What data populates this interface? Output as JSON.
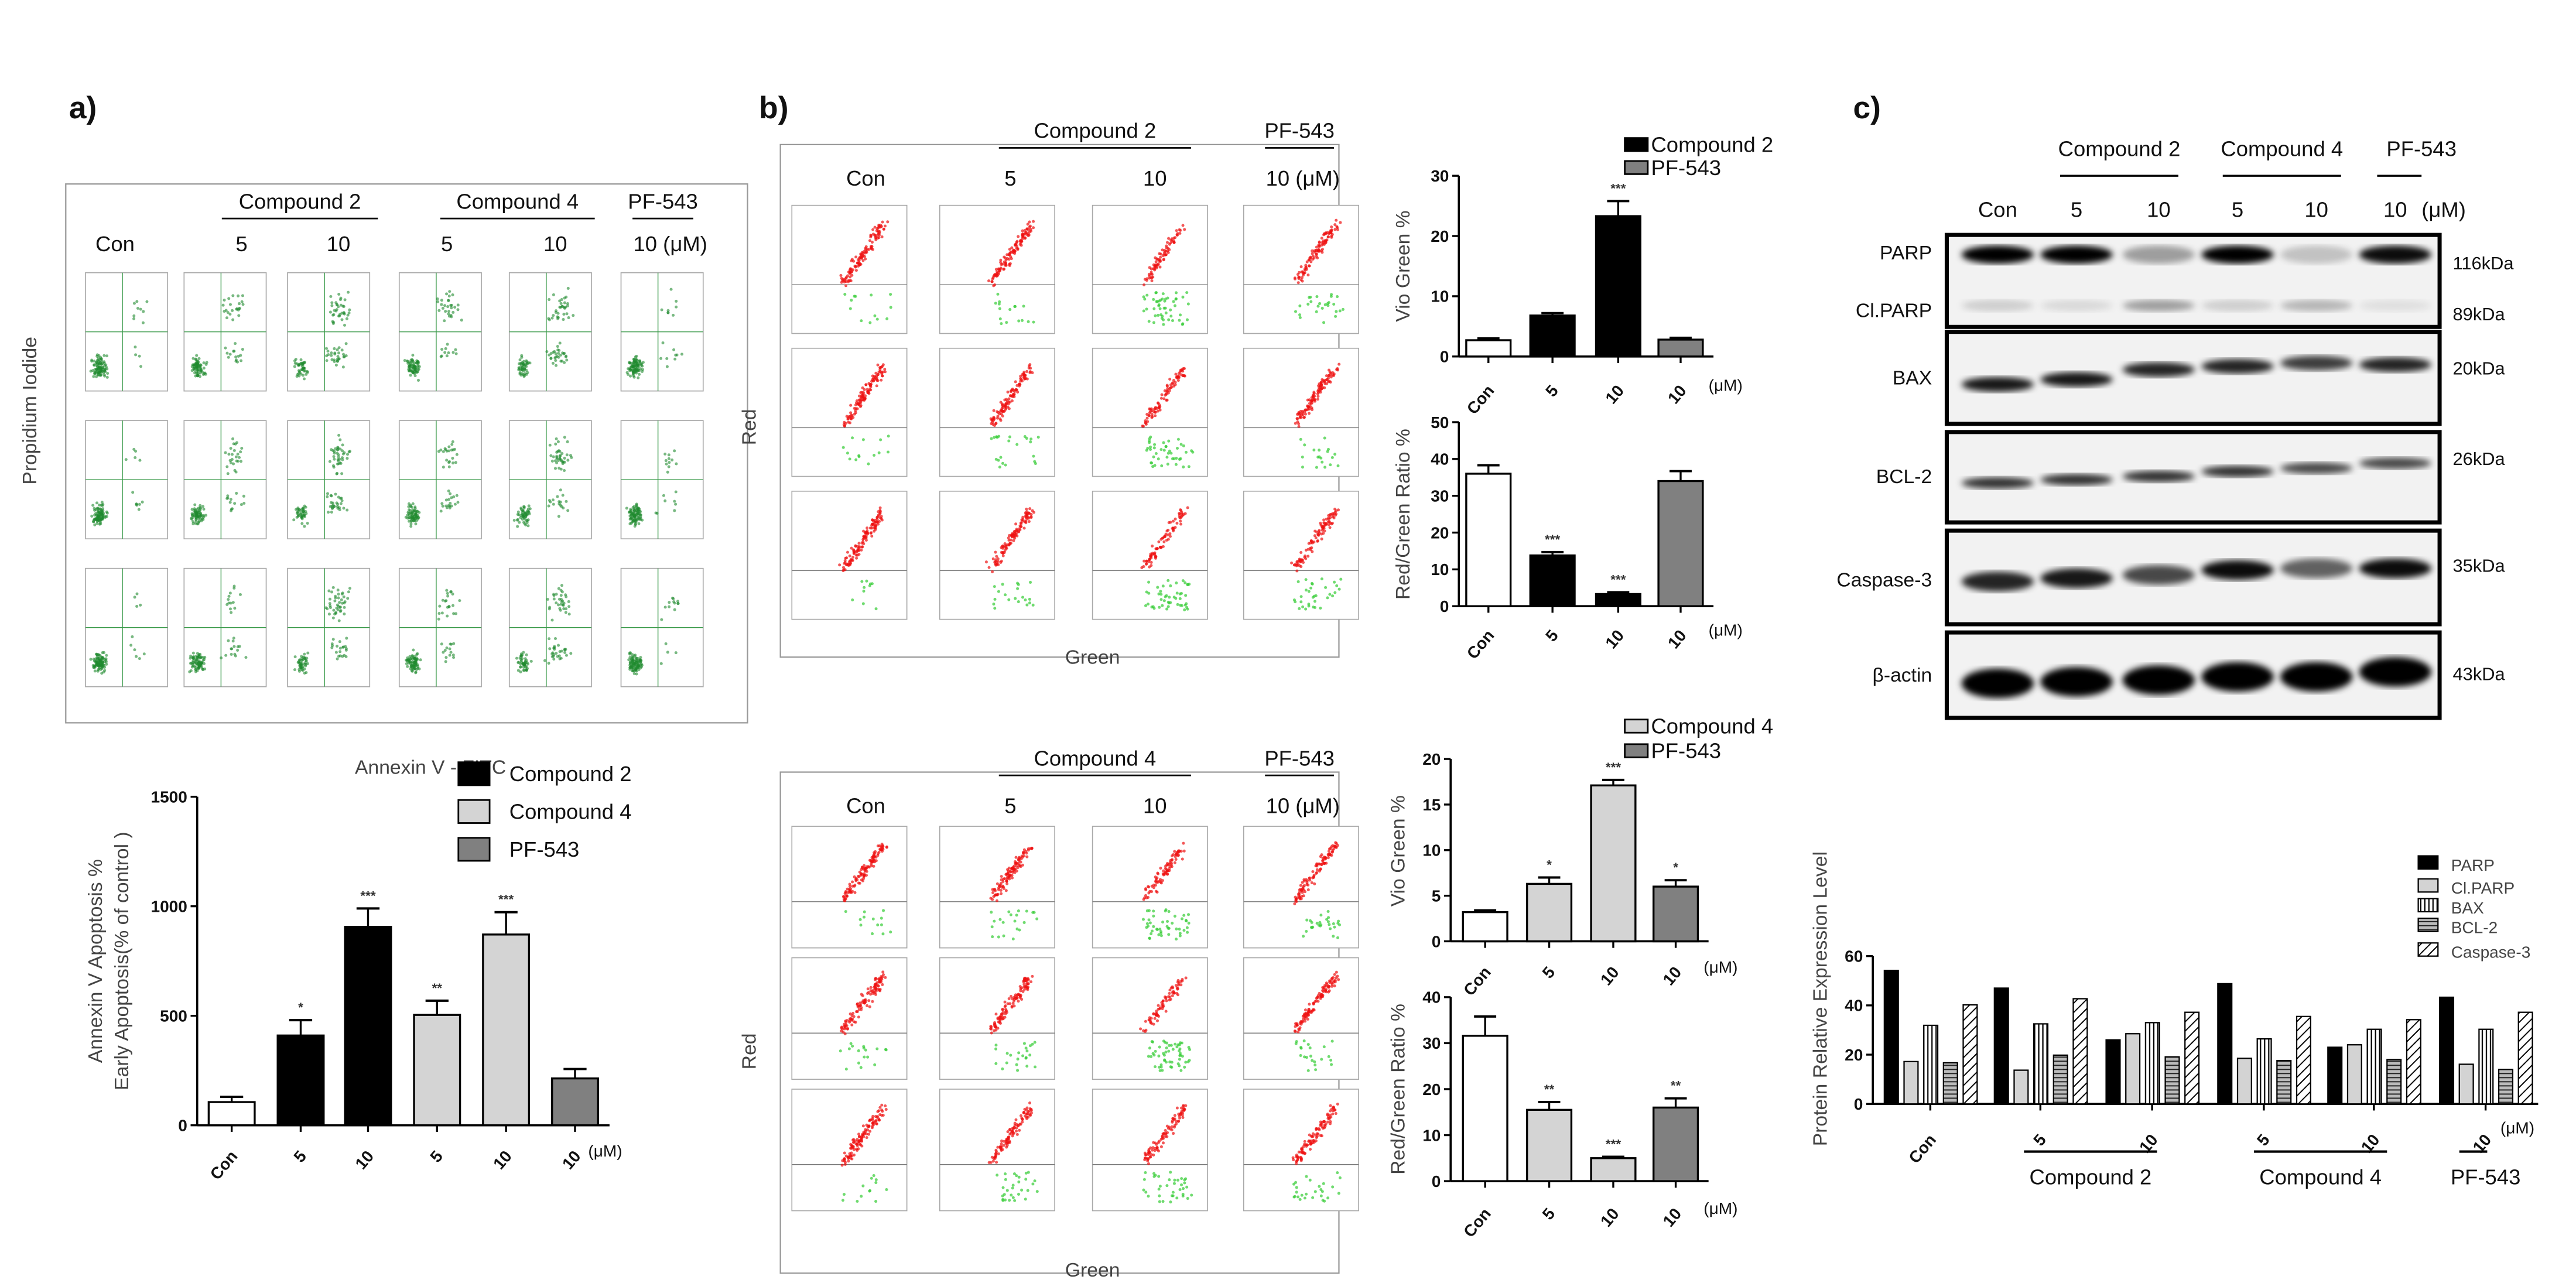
{
  "panels": {
    "a": "a)",
    "b": "b)",
    "c": "c)"
  },
  "flow_a": {
    "groups": [
      "Compound 2",
      "Compound 4",
      "PF-543"
    ],
    "columns": [
      "Con",
      "5",
      "10",
      "5",
      "10",
      "10 (μM)"
    ],
    "ylabel": "Propidium Iodide",
    "xlabel": "Annexin V - FITC"
  },
  "flow_b_top": {
    "groups": [
      "Compound 2",
      "PF-543"
    ],
    "columns": [
      "Con",
      "5",
      "10",
      "10 (μM)"
    ],
    "ylabel": "Red",
    "xlabel": "Green"
  },
  "flow_b_bottom": {
    "groups": [
      "Compound 4",
      "PF-543"
    ],
    "columns": [
      "Con",
      "5",
      "10",
      "10 (μM)"
    ],
    "ylabel": "Red",
    "xlabel": "Green"
  },
  "western_blot": {
    "groups": [
      "Compound 2",
      "Compound 4",
      "PF-543"
    ],
    "lanes": [
      "Con",
      "5",
      "10",
      "5",
      "10",
      "10"
    ],
    "unit": "(μM)",
    "rows": [
      {
        "protein": "PARP",
        "kda": "116kDa",
        "intensity": [
          1.0,
          1.0,
          0.35,
          1.0,
          0.2,
          0.95
        ]
      },
      {
        "protein": "Cl.PARP",
        "kda": "89kDa",
        "intensity": [
          0.15,
          0.1,
          0.35,
          0.15,
          0.25,
          0.08
        ]
      },
      {
        "protein": "BAX",
        "kda": "20kDa",
        "intensity": [
          0.9,
          0.9,
          0.85,
          0.85,
          0.75,
          0.85
        ]
      },
      {
        "protein": "BCL-2",
        "kda": "26kDa",
        "intensity": [
          0.8,
          0.8,
          0.8,
          0.8,
          0.7,
          0.7
        ]
      },
      {
        "protein": "Caspase-3",
        "kda": "35kDa",
        "intensity": [
          0.85,
          0.9,
          0.7,
          0.95,
          0.6,
          0.95
        ]
      },
      {
        "protein": "β-actin",
        "kda": "43kDa",
        "intensity": [
          1,
          1,
          1,
          1,
          1,
          1
        ]
      }
    ]
  },
  "chart_data": [
    {
      "id": "a-apoptosis",
      "type": "bar",
      "categories": [
        "Con",
        "5",
        "10",
        "5",
        "10",
        "10"
      ],
      "unit": "(μM)",
      "values": [
        106,
        410,
        906,
        504,
        871,
        214
      ],
      "errors": [
        130,
        480,
        990,
        569,
        973,
        257
      ],
      "significance": [
        "",
        "*",
        "***",
        "**",
        "***",
        ""
      ],
      "bar_colors": [
        "#ffffff",
        "#000000",
        "#000000",
        "#d4d4d4",
        "#d4d4d4",
        "#808080"
      ],
      "ylabel": [
        "Annexin V Apoptosis %",
        "Early Apoptosis(% of control )"
      ],
      "yticks": [
        0,
        500,
        1000,
        1500
      ],
      "ylim": [
        0,
        1500
      ],
      "legend": [
        {
          "name": "Compound 2",
          "color": "#000000"
        },
        {
          "name": "Compound 4",
          "color": "#d4d4d4"
        },
        {
          "name": "PF-543",
          "color": "#808080"
        }
      ]
    },
    {
      "id": "b-c2-vio-green",
      "type": "bar",
      "categories": [
        "Con",
        "5",
        "10",
        "10"
      ],
      "unit": "(μM)",
      "values": [
        2.7,
        6.8,
        23.3,
        2.8
      ],
      "errors": [
        3.0,
        7.2,
        25.8,
        3.1
      ],
      "significance": [
        "",
        "",
        "***",
        ""
      ],
      "bar_colors": [
        "#ffffff",
        "#000000",
        "#000000",
        "#808080"
      ],
      "ylabel": [
        "Vio Green %"
      ],
      "yticks": [
        0,
        10,
        20,
        30
      ],
      "ylim": [
        0,
        30
      ],
      "legend": [
        {
          "name": "Compound 2",
          "color": "#000000"
        },
        {
          "name": "PF-543",
          "color": "#808080"
        }
      ]
    },
    {
      "id": "b-c2-red-green-ratio",
      "type": "bar",
      "categories": [
        "Con",
        "5",
        "10",
        "10"
      ],
      "unit": "(μM)",
      "values": [
        36.0,
        13.8,
        3.3,
        34.0
      ],
      "errors": [
        38.3,
        14.7,
        3.8,
        36.7
      ],
      "significance": [
        "",
        "***",
        "***",
        ""
      ],
      "bar_colors": [
        "#ffffff",
        "#000000",
        "#000000",
        "#808080"
      ],
      "ylabel": [
        "Red/Green Ratio %"
      ],
      "yticks": [
        0,
        10,
        20,
        30,
        40,
        50
      ],
      "ylim": [
        0,
        50
      ],
      "legend": []
    },
    {
      "id": "b-c4-vio-green",
      "type": "bar",
      "categories": [
        "Con",
        "5",
        "10",
        "10"
      ],
      "unit": "(μM)",
      "values": [
        3.2,
        6.3,
        17.1,
        6.0
      ],
      "errors": [
        3.4,
        7.0,
        17.7,
        6.7
      ],
      "significance": [
        "",
        "*",
        "***",
        "*"
      ],
      "bar_colors": [
        "#ffffff",
        "#d4d4d4",
        "#d4d4d4",
        "#808080"
      ],
      "ylabel": [
        "Vio Green %"
      ],
      "yticks": [
        0,
        5,
        10,
        15,
        20
      ],
      "ylim": [
        0,
        20
      ],
      "legend": [
        {
          "name": "Compound 4",
          "color": "#d4d4d4"
        },
        {
          "name": "PF-543",
          "color": "#808080"
        }
      ]
    },
    {
      "id": "b-c4-red-green-ratio",
      "type": "bar",
      "categories": [
        "Con",
        "5",
        "10",
        "10"
      ],
      "unit": "(μM)",
      "values": [
        31.6,
        15.5,
        5.0,
        16.0
      ],
      "errors": [
        35.8,
        17.2,
        5.3,
        18.0
      ],
      "significance": [
        "",
        "**",
        "***",
        "**"
      ],
      "bar_colors": [
        "#ffffff",
        "#d4d4d4",
        "#d4d4d4",
        "#808080"
      ],
      "ylabel": [
        "Red/Green Ratio %"
      ],
      "yticks": [
        0,
        10,
        20,
        30,
        40
      ],
      "ylim": [
        0,
        40
      ],
      "legend": []
    },
    {
      "id": "c-protein-expression",
      "type": "bar",
      "categories": [
        "Con",
        "5",
        "10",
        "5",
        "10",
        "10"
      ],
      "unit": "(μM)",
      "group_labels": [
        "Compound 2",
        "Compound 4",
        "PF-543"
      ],
      "ylabel": [
        "Protein Relative Expression Level"
      ],
      "yticks": [
        0,
        20,
        40,
        60
      ],
      "ylim": [
        0,
        60
      ],
      "series": [
        {
          "name": "PARP",
          "values": [
            54.2,
            47.0,
            26.0,
            48.8,
            23.0,
            43.3
          ]
        },
        {
          "name": "Cl.PARP",
          "values": [
            17.2,
            13.7,
            28.5,
            18.5,
            24.0,
            16.1
          ]
        },
        {
          "name": "BAX",
          "values": [
            31.9,
            32.5,
            33.0,
            26.4,
            30.3,
            30.3
          ]
        },
        {
          "name": "BCL-2",
          "values": [
            16.7,
            19.8,
            19.1,
            17.6,
            18.0,
            14.0
          ]
        },
        {
          "name": "Caspase-3",
          "values": [
            40.2,
            42.7,
            37.2,
            35.5,
            34.2,
            37.2
          ]
        }
      ]
    }
  ]
}
